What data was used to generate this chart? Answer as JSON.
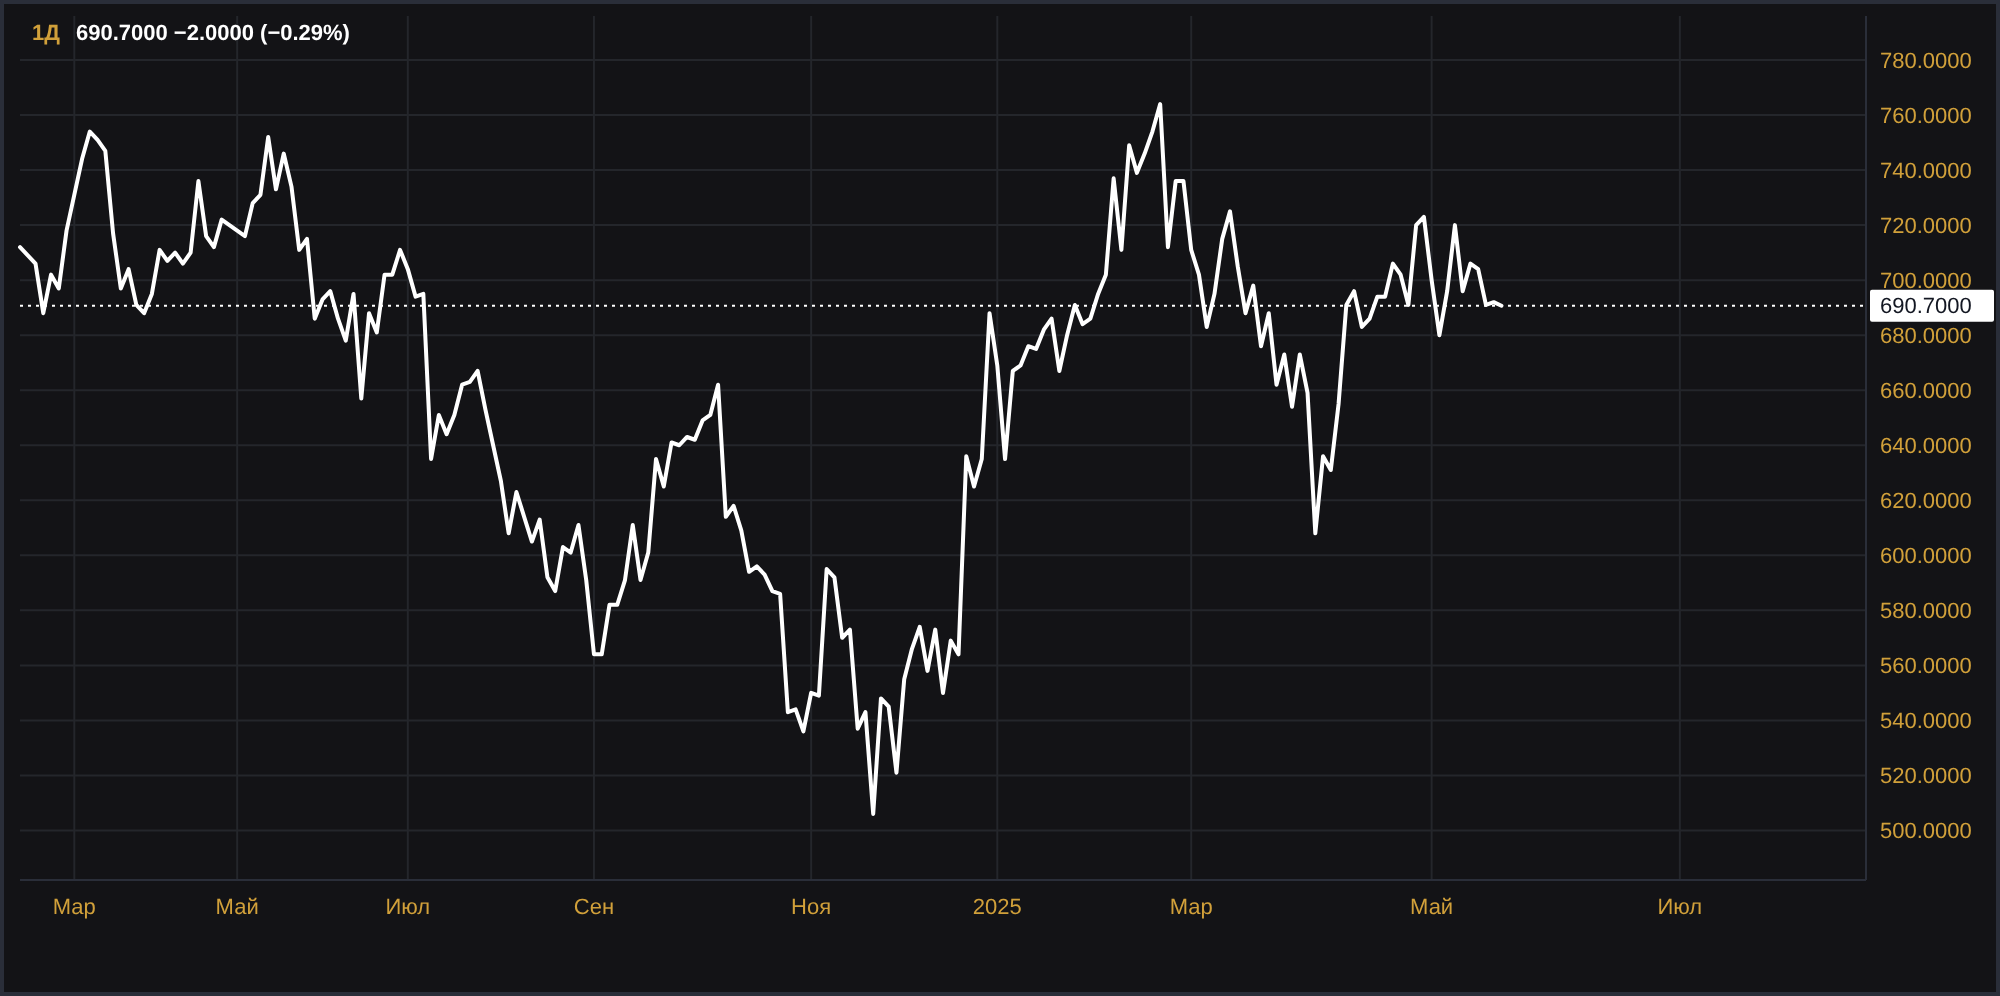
{
  "chart_data": {
    "type": "line",
    "title": "1Д",
    "subtitle": "690.7000 −2.0000 (−0.29%)",
    "color": "#ffffff",
    "grid": true,
    "line_style": "solid",
    "categories": [
      null,
      null,
      null,
      null,
      null,
      null,
      null,
      "Мар",
      null,
      null,
      null,
      null,
      null,
      null,
      null,
      null,
      null,
      null,
      null,
      null,
      null,
      null,
      null,
      null,
      null,
      null,
      null,
      null,
      "Май",
      null,
      null,
      null,
      null,
      null,
      null,
      null,
      null,
      null,
      null,
      null,
      null,
      null,
      null,
      null,
      null,
      null,
      null,
      null,
      null,
      null,
      "Июл",
      null,
      null,
      null,
      null,
      null,
      null,
      null,
      null,
      null,
      null,
      null,
      null,
      null,
      null,
      null,
      null,
      null,
      null,
      null,
      null,
      null,
      null,
      null,
      "Сен",
      null,
      null,
      null,
      null,
      null,
      null,
      null,
      null,
      null,
      null,
      null,
      null,
      null,
      null,
      null,
      null,
      null,
      null,
      null,
      null,
      null,
      null,
      null,
      null,
      null,
      null,
      null,
      "Ноя",
      null,
      null,
      null,
      null,
      null,
      null,
      null,
      null,
      null,
      null,
      null,
      null,
      null,
      null,
      null,
      null,
      null,
      null,
      null,
      null,
      null,
      null,
      null,
      "2025",
      null,
      null,
      null,
      null,
      null,
      null,
      null,
      null,
      null,
      null,
      null,
      null,
      null,
      null,
      null,
      null,
      null,
      null,
      null,
      null,
      null,
      null,
      null,
      null,
      "Мар",
      null,
      null,
      null,
      null,
      null,
      null,
      null,
      null,
      null,
      null,
      null,
      null,
      null,
      null,
      null,
      null,
      null,
      null,
      null,
      null,
      null,
      null,
      null,
      null,
      null,
      null,
      null,
      null,
      null,
      null,
      "Май",
      null,
      null,
      null,
      null,
      null,
      null,
      null,
      null,
      null,
      null,
      null,
      null,
      null,
      null,
      null,
      null,
      null,
      null,
      null,
      null,
      null,
      null,
      null,
      null,
      null,
      null,
      null,
      null,
      null,
      null,
      null,
      "Июл",
      null,
      null,
      null,
      null,
      null,
      null,
      null,
      null,
      null,
      null,
      null,
      null,
      null,
      null,
      null,
      null,
      null,
      null,
      null,
      null,
      null,
      null,
      null,
      null
    ],
    "ylim": [
      482,
      796
    ],
    "yticks": [
      {
        "value": 500,
        "label": "500.0000"
      },
      {
        "value": 520,
        "label": "520.0000"
      },
      {
        "value": 540,
        "label": "540.0000"
      },
      {
        "value": 560,
        "label": "560.0000"
      },
      {
        "value": 580,
        "label": "580.0000"
      },
      {
        "value": 600,
        "label": "600.0000"
      },
      {
        "value": 620,
        "label": "620.0000"
      },
      {
        "value": 640,
        "label": "640.0000"
      },
      {
        "value": 660,
        "label": "660.0000"
      },
      {
        "value": 680,
        "label": "680.0000"
      },
      {
        "value": 700,
        "label": "700.0000"
      },
      {
        "value": 720,
        "label": "720.0000"
      },
      {
        "value": 740,
        "label": "740.0000"
      },
      {
        "value": 760,
        "label": "760.0000"
      },
      {
        "value": 780,
        "label": "780.0000"
      }
    ],
    "ref_lines": [
      {
        "axis": "y",
        "value": 690.7,
        "label": "690.7000",
        "color": "#ffffff",
        "line_style": "dotted"
      }
    ],
    "values": [
      712,
      709,
      706,
      688,
      702,
      697,
      718,
      731,
      744,
      754,
      751,
      747,
      717,
      697,
      704,
      691,
      688,
      695,
      711,
      707,
      710,
      706,
      710,
      736,
      716,
      712,
      722,
      720,
      718,
      716,
      728,
      731,
      752,
      733,
      746,
      734,
      711,
      715,
      686,
      693,
      696,
      686,
      678,
      695,
      657,
      688,
      681,
      702,
      702,
      711,
      704,
      694,
      695,
      635,
      651,
      644,
      651,
      662,
      663,
      667,
      653,
      640,
      627,
      608,
      623,
      614,
      605,
      613,
      592,
      587,
      603,
      601,
      611,
      591,
      564,
      564,
      582,
      582,
      591,
      611,
      591,
      601,
      635,
      625,
      641,
      640,
      643,
      642,
      649,
      651,
      662,
      614,
      618,
      609,
      594,
      596,
      593,
      587,
      586,
      543,
      544,
      536,
      550,
      549,
      595,
      592,
      570,
      573,
      537,
      543,
      506,
      548,
      545,
      521,
      555,
      566,
      574,
      558,
      573,
      550,
      569,
      564,
      636,
      625,
      635,
      688,
      669,
      635,
      667,
      669,
      676,
      675,
      682,
      686,
      667,
      680,
      691,
      684,
      686,
      695,
      702,
      737,
      711,
      749,
      739,
      746,
      754,
      764,
      712,
      736,
      736,
      711,
      702,
      683,
      695,
      715,
      725,
      705,
      688,
      698,
      676,
      688,
      662,
      673,
      654,
      673,
      659,
      608,
      636,
      631,
      655,
      691,
      696,
      683,
      686,
      694,
      694,
      706,
      702,
      691,
      720,
      723,
      700,
      680,
      696,
      720,
      696,
      706,
      704,
      691,
      692,
      690.7,
      null,
      null,
      null,
      null,
      null,
      null,
      null,
      null,
      null,
      null,
      null,
      null,
      null,
      null,
      null,
      null,
      null,
      null,
      null,
      null,
      null,
      null,
      null,
      null,
      null,
      null,
      null,
      null,
      null,
      null,
      null,
      null,
      null,
      null,
      null,
      null,
      null,
      null,
      null,
      null,
      null,
      null,
      null,
      null,
      null,
      null,
      null
    ]
  }
}
